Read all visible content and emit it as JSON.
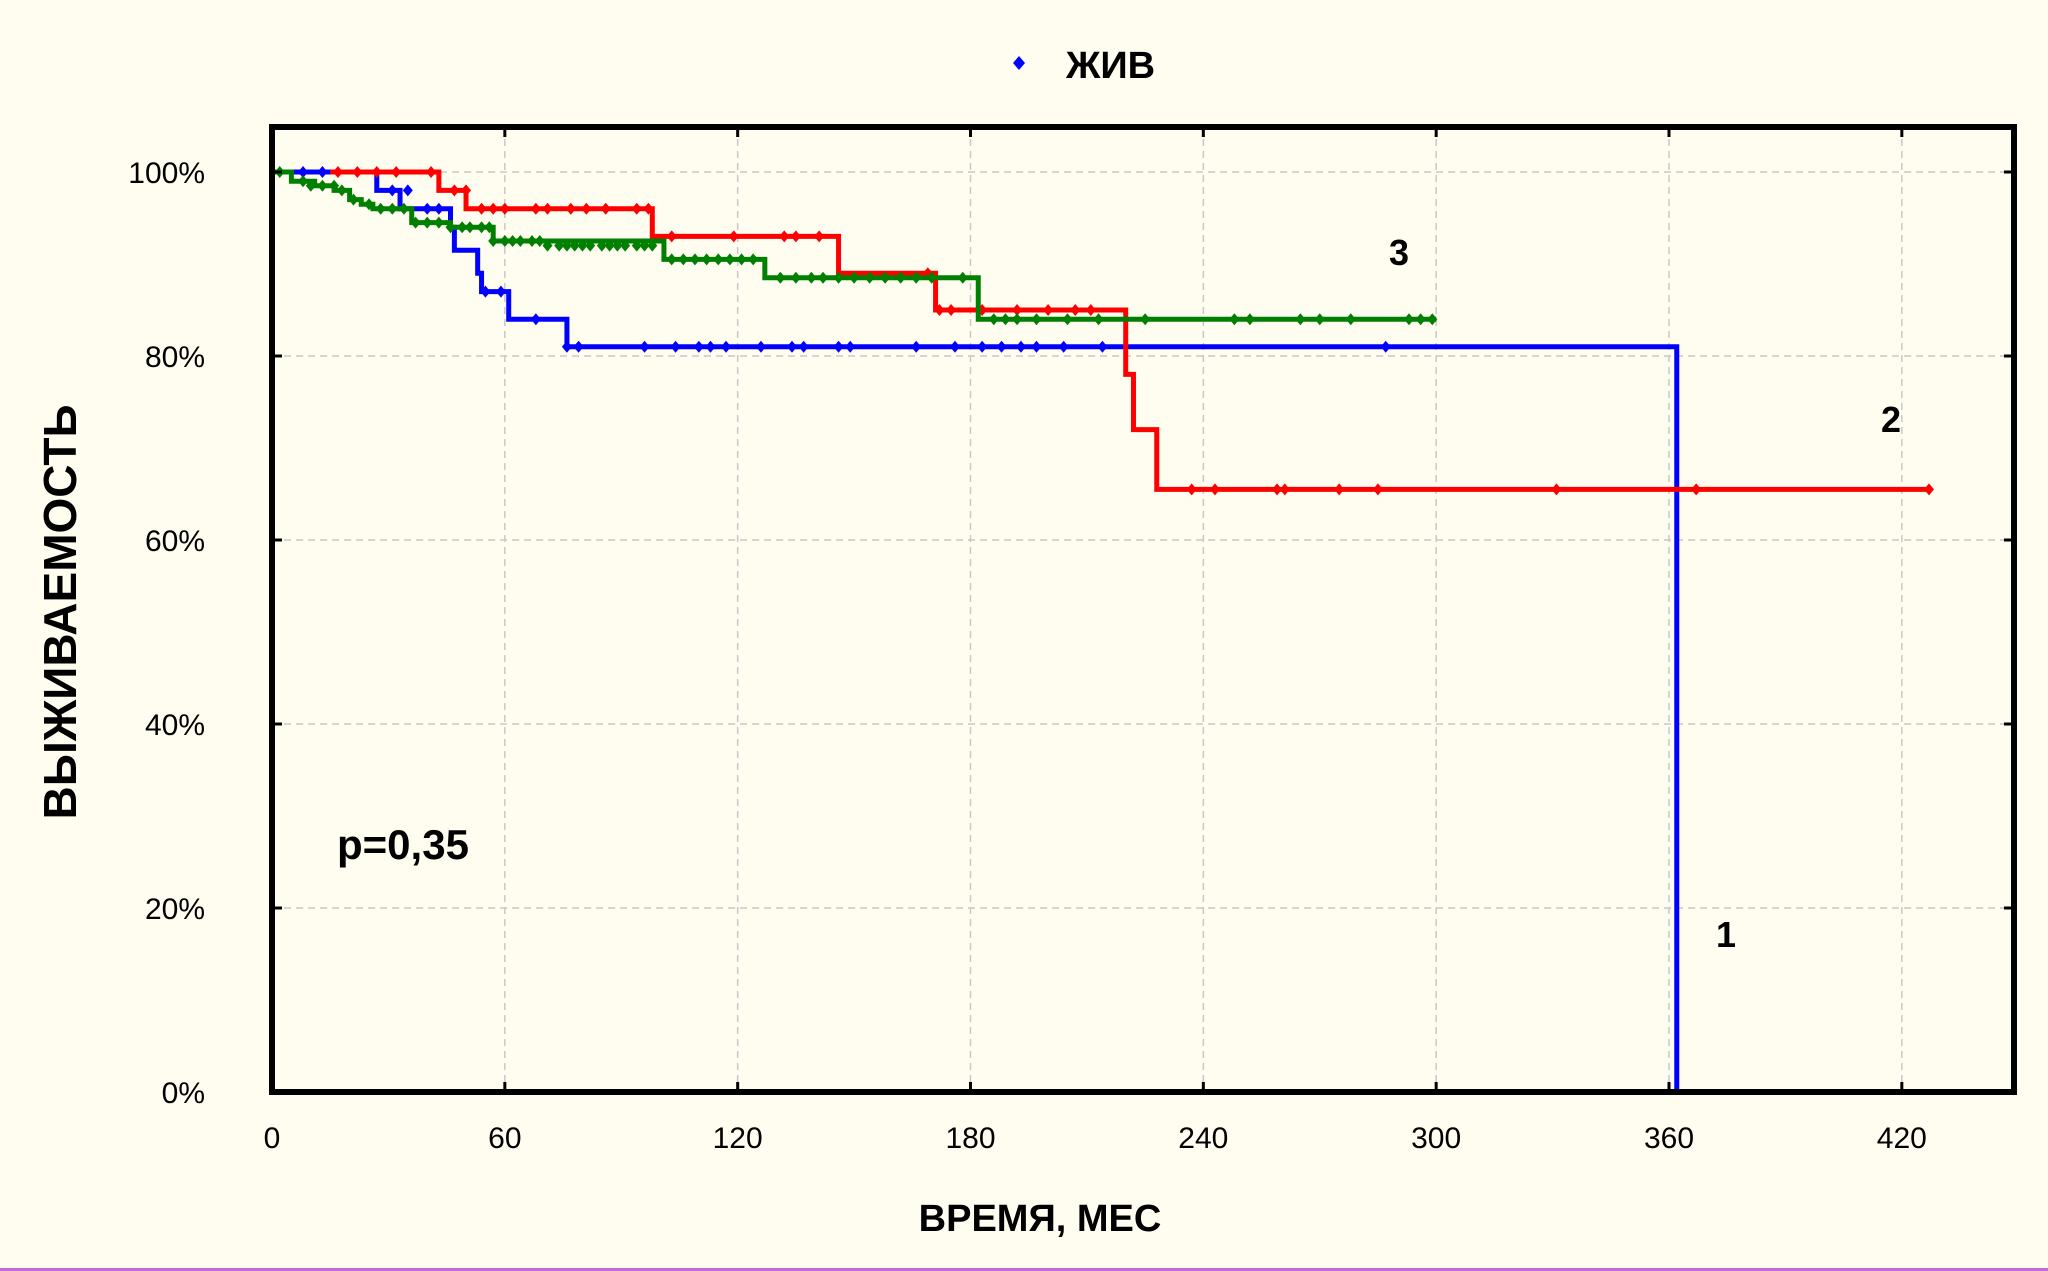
{
  "chart_data": {
    "type": "line",
    "step": true,
    "title": "",
    "xlabel": "ВРЕМЯ, МЕС",
    "ylabel": "ВЫЖИВАЕМОСТЬ",
    "xlim": [
      0,
      450
    ],
    "ylim": [
      0,
      1.05
    ],
    "x_ticks": [
      0,
      60,
      120,
      180,
      240,
      300,
      360,
      420
    ],
    "x_tick_labels": [
      "0",
      "60",
      "120",
      "180",
      "240",
      "300",
      "360",
      "420"
    ],
    "y_ticks": [
      0,
      0.2,
      0.4,
      0.6,
      0.8,
      1.0
    ],
    "y_tick_labels": [
      "0%",
      "20%",
      "40%",
      "60%",
      "80%",
      "100%"
    ],
    "grid": true,
    "legend": {
      "position": "top-center",
      "entries": [
        {
          "label": "ЖИВ",
          "color": "#0000ff",
          "marker": "diamond"
        }
      ]
    },
    "annotations": [
      {
        "text": "p=0,35",
        "x": 15,
        "y": 0.27
      },
      {
        "text": "1",
        "x": 373,
        "y": 0.17
      },
      {
        "text": "2",
        "x": 417,
        "y": 0.73
      },
      {
        "text": "3",
        "x": 290,
        "y": 0.91
      }
    ],
    "series": [
      {
        "name": "1",
        "color": "#0000ff",
        "steps": [
          [
            0,
            1.0
          ],
          [
            27,
            0.98
          ],
          [
            33,
            0.96
          ],
          [
            46,
            0.94
          ],
          [
            47,
            0.915
          ],
          [
            53,
            0.89
          ],
          [
            54,
            0.87
          ],
          [
            61,
            0.84
          ],
          [
            76,
            0.81
          ],
          [
            362,
            0.81
          ],
          [
            362,
            0.0
          ]
        ],
        "censored": [
          [
            8,
            1.0
          ],
          [
            13,
            1.0
          ],
          [
            31,
            0.98
          ],
          [
            35,
            0.98
          ],
          [
            40,
            0.96
          ],
          [
            43,
            0.96
          ],
          [
            55,
            0.87
          ],
          [
            59,
            0.87
          ],
          [
            68,
            0.84
          ],
          [
            76,
            0.81
          ],
          [
            79,
            0.81
          ],
          [
            96,
            0.81
          ],
          [
            104,
            0.81
          ],
          [
            110,
            0.81
          ],
          [
            113,
            0.81
          ],
          [
            117,
            0.81
          ],
          [
            126,
            0.81
          ],
          [
            134,
            0.81
          ],
          [
            137,
            0.81
          ],
          [
            146,
            0.81
          ],
          [
            149,
            0.81
          ],
          [
            166,
            0.81
          ],
          [
            176,
            0.81
          ],
          [
            183,
            0.81
          ],
          [
            188,
            0.81
          ],
          [
            193,
            0.81
          ],
          [
            197,
            0.81
          ],
          [
            204,
            0.81
          ],
          [
            214,
            0.81
          ],
          [
            287,
            0.81
          ]
        ]
      },
      {
        "name": "2",
        "color": "#ff0000",
        "steps": [
          [
            15,
            1.0
          ],
          [
            43,
            0.98
          ],
          [
            50,
            0.96
          ],
          [
            98,
            0.93
          ],
          [
            146,
            0.89
          ],
          [
            171,
            0.85
          ],
          [
            220,
            0.78
          ],
          [
            222,
            0.72
          ],
          [
            228,
            0.655
          ],
          [
            427,
            0.655
          ]
        ],
        "censored": [
          [
            17,
            1.0
          ],
          [
            22,
            1.0
          ],
          [
            27,
            1.0
          ],
          [
            32,
            1.0
          ],
          [
            41,
            1.0
          ],
          [
            47,
            0.98
          ],
          [
            50,
            0.98
          ],
          [
            54,
            0.96
          ],
          [
            57,
            0.96
          ],
          [
            60,
            0.96
          ],
          [
            68,
            0.96
          ],
          [
            71,
            0.96
          ],
          [
            77,
            0.96
          ],
          [
            81,
            0.96
          ],
          [
            86,
            0.96
          ],
          [
            94,
            0.96
          ],
          [
            97,
            0.96
          ],
          [
            103,
            0.93
          ],
          [
            119,
            0.93
          ],
          [
            132,
            0.93
          ],
          [
            135,
            0.93
          ],
          [
            141,
            0.93
          ],
          [
            169,
            0.89
          ],
          [
            172,
            0.85
          ],
          [
            175,
            0.85
          ],
          [
            183,
            0.85
          ],
          [
            192,
            0.85
          ],
          [
            200,
            0.85
          ],
          [
            207,
            0.85
          ],
          [
            211,
            0.85
          ],
          [
            237,
            0.655
          ],
          [
            243,
            0.655
          ],
          [
            259,
            0.655
          ],
          [
            261,
            0.655
          ],
          [
            275,
            0.655
          ],
          [
            285,
            0.655
          ],
          [
            331,
            0.655
          ],
          [
            367,
            0.655
          ],
          [
            427,
            0.655
          ]
        ]
      },
      {
        "name": "3",
        "color": "#008000",
        "steps": [
          [
            0,
            1.0
          ],
          [
            5,
            0.99
          ],
          [
            11,
            0.985
          ],
          [
            16,
            0.98
          ],
          [
            20,
            0.97
          ],
          [
            23,
            0.965
          ],
          [
            26,
            0.96
          ],
          [
            36,
            0.945
          ],
          [
            46,
            0.94
          ],
          [
            57,
            0.925
          ],
          [
            101,
            0.91
          ],
          [
            101,
            0.905
          ],
          [
            127,
            0.885
          ],
          [
            182,
            0.84
          ],
          [
            300,
            0.84
          ]
        ],
        "censored": [
          [
            2,
            1.0
          ],
          [
            8,
            0.99
          ],
          [
            10,
            0.985
          ],
          [
            13,
            0.985
          ],
          [
            16,
            0.985
          ],
          [
            18,
            0.98
          ],
          [
            21,
            0.97
          ],
          [
            25,
            0.965
          ],
          [
            28,
            0.96
          ],
          [
            31,
            0.96
          ],
          [
            34,
            0.96
          ],
          [
            37,
            0.945
          ],
          [
            40,
            0.945
          ],
          [
            43,
            0.945
          ],
          [
            46,
            0.94
          ],
          [
            49,
            0.94
          ],
          [
            51,
            0.94
          ],
          [
            54,
            0.94
          ],
          [
            56,
            0.94
          ],
          [
            57,
            0.925
          ],
          [
            60,
            0.925
          ],
          [
            62,
            0.925
          ],
          [
            64,
            0.925
          ],
          [
            67,
            0.925
          ],
          [
            69,
            0.925
          ],
          [
            71,
            0.92
          ],
          [
            74,
            0.92
          ],
          [
            76,
            0.92
          ],
          [
            78,
            0.92
          ],
          [
            80,
            0.92
          ],
          [
            82,
            0.92
          ],
          [
            85,
            0.92
          ],
          [
            87,
            0.92
          ],
          [
            89,
            0.92
          ],
          [
            91,
            0.92
          ],
          [
            94,
            0.92
          ],
          [
            96,
            0.92
          ],
          [
            98,
            0.92
          ],
          [
            103,
            0.905
          ],
          [
            106,
            0.905
          ],
          [
            109,
            0.905
          ],
          [
            112,
            0.905
          ],
          [
            115,
            0.905
          ],
          [
            118,
            0.905
          ],
          [
            121,
            0.905
          ],
          [
            124,
            0.905
          ],
          [
            131,
            0.885
          ],
          [
            135,
            0.885
          ],
          [
            139,
            0.885
          ],
          [
            142,
            0.885
          ],
          [
            146,
            0.885
          ],
          [
            150,
            0.885
          ],
          [
            154,
            0.885
          ],
          [
            158,
            0.885
          ],
          [
            162,
            0.885
          ],
          [
            166,
            0.885
          ],
          [
            170,
            0.885
          ],
          [
            178,
            0.885
          ],
          [
            186,
            0.84
          ],
          [
            189,
            0.84
          ],
          [
            192,
            0.84
          ],
          [
            197,
            0.84
          ],
          [
            205,
            0.84
          ],
          [
            213,
            0.84
          ],
          [
            225,
            0.84
          ],
          [
            248,
            0.84
          ],
          [
            252,
            0.84
          ],
          [
            265,
            0.84
          ],
          [
            270,
            0.84
          ],
          [
            278,
            0.84
          ],
          [
            293,
            0.84
          ],
          [
            296,
            0.84
          ],
          [
            299,
            0.84
          ]
        ]
      }
    ]
  }
}
